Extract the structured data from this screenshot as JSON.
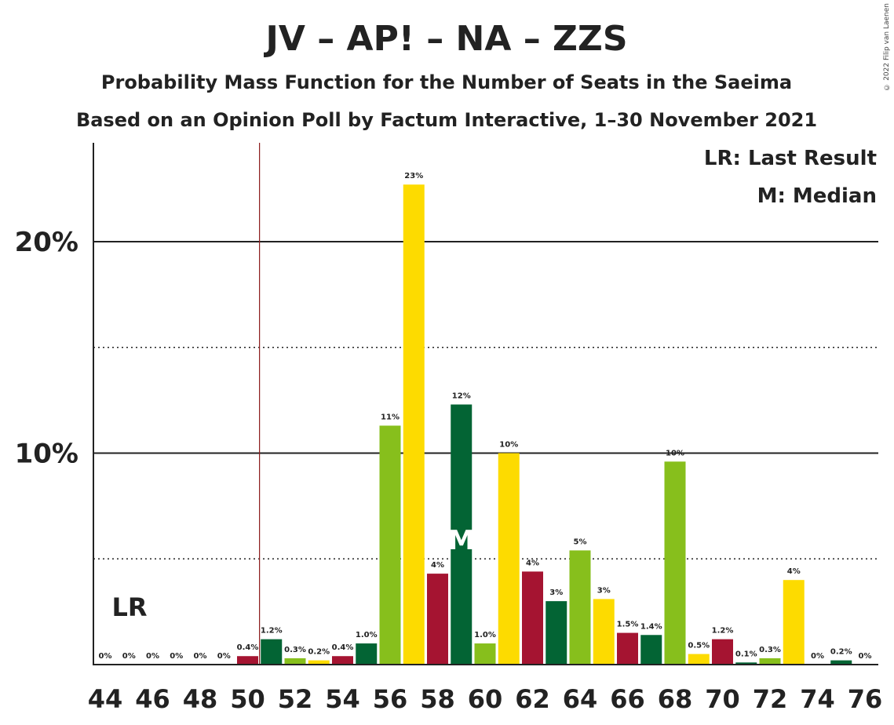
{
  "chart_data": {
    "type": "bar",
    "title": "JV – AP! – NA – ZZS",
    "subtitle": "Probability Mass Function for the Number of Seats in the Saeima",
    "subtitle2": "Based on an Opinion Poll by Factum Interactive, 1–30 November 2021",
    "legend": [
      "LR: Last Result",
      "M: Median"
    ],
    "copyright": "© 2022 Filip van Laenen",
    "last_result_seat": 50,
    "last_result_label": "LR",
    "median_seat": 59,
    "median_label": "M",
    "ylim": [
      0,
      24
    ],
    "y_ticks": [
      {
        "value": 10,
        "label": "10%"
      },
      {
        "value": 20,
        "label": "20%"
      }
    ],
    "y_dotted": [
      5,
      15
    ],
    "x_ticks": [
      "44",
      "46",
      "48",
      "50",
      "52",
      "54",
      "56",
      "58",
      "60",
      "62",
      "64",
      "66",
      "68",
      "70",
      "72",
      "74",
      "76"
    ],
    "colors": {
      "darkred": "#A51431",
      "darkgreen": "#036434",
      "lightgreen": "#87BF1C",
      "yellow": "#FDDB00",
      "lr_line": "#8B1A1A"
    },
    "bars": [
      {
        "seat": 44,
        "value": 0,
        "label": "0%",
        "color": "darkred"
      },
      {
        "seat": 45,
        "value": 0,
        "label": "0%",
        "color": "darkgreen"
      },
      {
        "seat": 46,
        "value": 0,
        "label": "0%",
        "color": "lightgreen"
      },
      {
        "seat": 47,
        "value": 0,
        "label": "0%",
        "color": "yellow"
      },
      {
        "seat": 48,
        "value": 0,
        "label": "0%",
        "color": "darkred"
      },
      {
        "seat": 49,
        "value": 0,
        "label": "0%",
        "color": "darkgreen"
      },
      {
        "seat": 50,
        "value": 0.4,
        "label": "0.4%",
        "color": "darkred"
      },
      {
        "seat": 51,
        "value": 1.2,
        "label": "1.2%",
        "color": "darkgreen"
      },
      {
        "seat": 52,
        "value": 0.3,
        "label": "0.3%",
        "color": "lightgreen"
      },
      {
        "seat": 53,
        "value": 0.2,
        "label": "0.2%",
        "color": "yellow"
      },
      {
        "seat": 54,
        "value": 0.4,
        "label": "0.4%",
        "color": "darkred"
      },
      {
        "seat": 55,
        "value": 1.0,
        "label": "1.0%",
        "color": "darkgreen"
      },
      {
        "seat": 56,
        "value": 11.3,
        "label": "11%",
        "color": "lightgreen"
      },
      {
        "seat": 57,
        "value": 22.7,
        "label": "23%",
        "color": "yellow"
      },
      {
        "seat": 58,
        "value": 4.3,
        "label": "4%",
        "color": "darkred"
      },
      {
        "seat": 59,
        "value": 12.3,
        "label": "12%",
        "color": "darkgreen"
      },
      {
        "seat": 60,
        "value": 1.0,
        "label": "1.0%",
        "color": "lightgreen"
      },
      {
        "seat": 61,
        "value": 10.0,
        "label": "10%",
        "color": "yellow"
      },
      {
        "seat": 62,
        "value": 4.4,
        "label": "4%",
        "color": "darkred"
      },
      {
        "seat": 63,
        "value": 3.0,
        "label": "3%",
        "color": "darkgreen"
      },
      {
        "seat": 64,
        "value": 5.4,
        "label": "5%",
        "color": "lightgreen"
      },
      {
        "seat": 65,
        "value": 3.1,
        "label": "3%",
        "color": "yellow"
      },
      {
        "seat": 66,
        "value": 1.5,
        "label": "1.5%",
        "color": "darkred"
      },
      {
        "seat": 67,
        "value": 1.4,
        "label": "1.4%",
        "color": "darkgreen"
      },
      {
        "seat": 68,
        "value": 9.6,
        "label": "10%",
        "color": "lightgreen"
      },
      {
        "seat": 69,
        "value": 0.5,
        "label": "0.5%",
        "color": "yellow"
      },
      {
        "seat": 70,
        "value": 1.2,
        "label": "1.2%",
        "color": "darkred"
      },
      {
        "seat": 71,
        "value": 0.1,
        "label": "0.1%",
        "color": "darkgreen"
      },
      {
        "seat": 72,
        "value": 0.3,
        "label": "0.3%",
        "color": "lightgreen"
      },
      {
        "seat": 73,
        "value": 4.0,
        "label": "4%",
        "color": "yellow"
      },
      {
        "seat": 74,
        "value": 0,
        "label": "0%",
        "color": "darkred"
      },
      {
        "seat": 75,
        "value": 0.2,
        "label": "0.2%",
        "color": "darkgreen"
      },
      {
        "seat": 76,
        "value": 0,
        "label": "0%",
        "color": "lightgreen"
      }
    ]
  }
}
